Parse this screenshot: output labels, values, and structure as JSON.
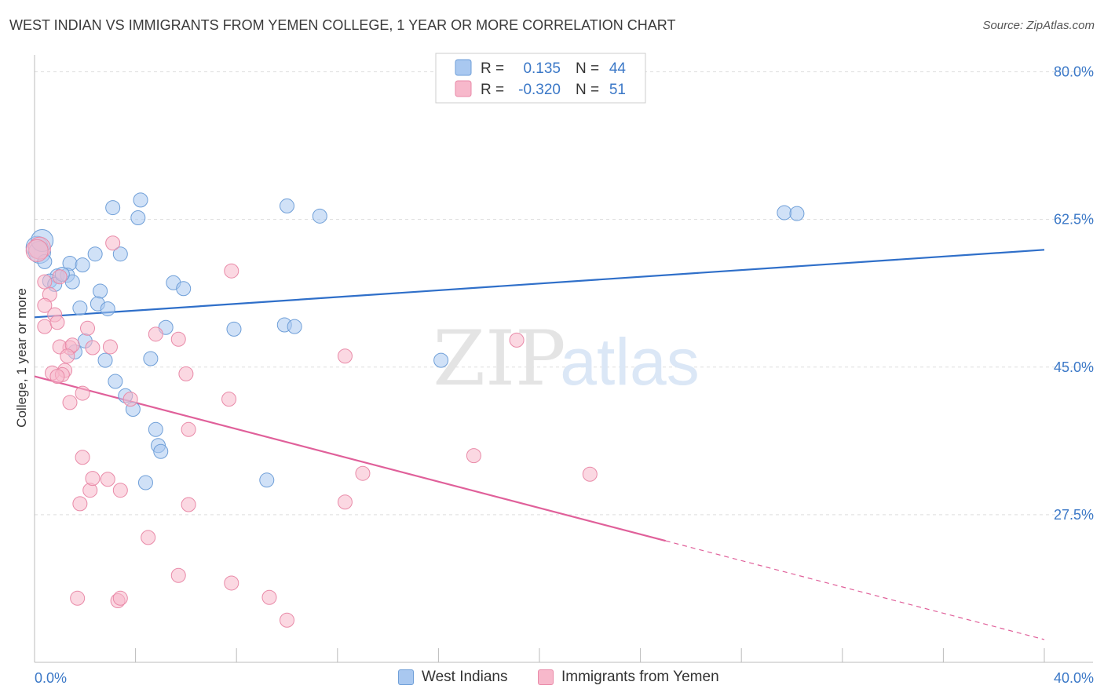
{
  "title": "WEST INDIAN VS IMMIGRANTS FROM YEMEN COLLEGE, 1 YEAR OR MORE CORRELATION CHART",
  "source": "Source: ZipAtlas.com",
  "watermark": {
    "zip": "ZIP",
    "atlas": "atlas"
  },
  "colors": {
    "blue_fill": "#a9c8f0",
    "blue_stroke": "#6f9fd8",
    "blue_line": "#2f6fc9",
    "pink_fill": "#f7b8cb",
    "pink_stroke": "#e98aa8",
    "pink_line": "#e0609a",
    "grid": "#dddddd",
    "axis_text": "#3b78c7"
  },
  "legend": {
    "rows": [
      {
        "r_label": "R =",
        "r_value": "0.135",
        "n_label": "N =",
        "n_value": "44"
      },
      {
        "r_label": "R =",
        "r_value": "-0.320",
        "n_label": "N =",
        "n_value": "51"
      }
    ]
  },
  "chart_data": {
    "type": "scatter",
    "xlabel": "",
    "ylabel": "College, 1 year or more",
    "xlim": [
      0,
      40
    ],
    "ylim": [
      10,
      82
    ],
    "x_tick_labels": [
      "0.0%",
      "40.0%"
    ],
    "y_ticks": [
      27.5,
      45.0,
      62.5,
      80.0
    ],
    "y_tick_labels": [
      "27.5%",
      "45.0%",
      "62.5%",
      "80.0%"
    ],
    "grid": true,
    "legend_position": "top-center",
    "series": [
      {
        "name": "West Indians",
        "color": "blue",
        "trend": {
          "x": [
            0,
            40
          ],
          "y": [
            50.9,
            58.9
          ],
          "dashed_from": null
        },
        "points": [
          [
            0.1,
            59.2
          ],
          [
            0.2,
            58.6
          ],
          [
            0.4,
            57.5
          ],
          [
            1.4,
            57.3
          ],
          [
            1.9,
            57.1
          ],
          [
            2.4,
            58.4
          ],
          [
            0.9,
            55.8
          ],
          [
            1.3,
            55.9
          ],
          [
            0.6,
            55.2
          ],
          [
            1.5,
            55.1
          ],
          [
            0.8,
            54.8
          ],
          [
            2.6,
            54.0
          ],
          [
            2.5,
            52.5
          ],
          [
            1.8,
            52.0
          ],
          [
            2.9,
            51.9
          ],
          [
            3.1,
            63.9
          ],
          [
            3.4,
            58.4
          ],
          [
            4.1,
            62.7
          ],
          [
            4.2,
            64.8
          ],
          [
            5.5,
            55.0
          ],
          [
            5.9,
            54.3
          ],
          [
            5.2,
            49.7
          ],
          [
            7.9,
            49.5
          ],
          [
            9.9,
            50.0
          ],
          [
            10.3,
            49.8
          ],
          [
            10.0,
            64.1
          ],
          [
            11.3,
            62.9
          ],
          [
            1.6,
            46.8
          ],
          [
            2.0,
            48.1
          ],
          [
            2.8,
            45.8
          ],
          [
            4.6,
            46.0
          ],
          [
            3.2,
            43.3
          ],
          [
            3.6,
            41.6
          ],
          [
            3.9,
            40.0
          ],
          [
            4.8,
            37.6
          ],
          [
            4.9,
            35.7
          ],
          [
            5.0,
            35.0
          ],
          [
            4.4,
            31.3
          ],
          [
            9.2,
            31.6
          ],
          [
            16.1,
            45.8
          ],
          [
            29.7,
            63.3
          ],
          [
            30.2,
            63.2
          ],
          [
            0.3,
            60.0
          ],
          [
            1.1,
            56.0
          ]
        ]
      },
      {
        "name": "Immigrants from Yemen",
        "color": "pink",
        "trend": {
          "x": [
            0,
            40
          ],
          "y": [
            43.9,
            12.7
          ],
          "dashed_from": 25.0
        },
        "points": [
          [
            0.2,
            59.1
          ],
          [
            0.4,
            55.1
          ],
          [
            0.6,
            53.6
          ],
          [
            1.0,
            55.7
          ],
          [
            0.4,
            52.3
          ],
          [
            0.8,
            51.2
          ],
          [
            0.4,
            49.8
          ],
          [
            0.9,
            50.3
          ],
          [
            2.1,
            49.6
          ],
          [
            1.4,
            47.3
          ],
          [
            1.0,
            47.4
          ],
          [
            1.5,
            47.6
          ],
          [
            2.3,
            47.3
          ],
          [
            3.0,
            47.4
          ],
          [
            1.3,
            46.3
          ],
          [
            0.7,
            44.3
          ],
          [
            1.2,
            44.6
          ],
          [
            1.1,
            44.1
          ],
          [
            0.9,
            43.9
          ],
          [
            1.4,
            40.8
          ],
          [
            1.9,
            41.9
          ],
          [
            3.8,
            41.2
          ],
          [
            3.1,
            59.7
          ],
          [
            5.7,
            48.3
          ],
          [
            4.8,
            48.9
          ],
          [
            6.0,
            44.2
          ],
          [
            7.7,
            41.2
          ],
          [
            6.1,
            37.6
          ],
          [
            7.8,
            56.4
          ],
          [
            12.3,
            46.3
          ],
          [
            19.1,
            48.2
          ],
          [
            1.9,
            34.3
          ],
          [
            2.2,
            30.4
          ],
          [
            2.3,
            31.8
          ],
          [
            2.9,
            31.7
          ],
          [
            3.4,
            30.4
          ],
          [
            1.8,
            28.8
          ],
          [
            6.1,
            28.7
          ],
          [
            12.3,
            29.0
          ],
          [
            13.0,
            32.4
          ],
          [
            17.4,
            34.5
          ],
          [
            22.0,
            32.3
          ],
          [
            4.5,
            24.8
          ],
          [
            5.7,
            20.3
          ],
          [
            7.8,
            19.4
          ],
          [
            1.7,
            17.6
          ],
          [
            3.3,
            17.3
          ],
          [
            3.4,
            17.6
          ],
          [
            9.3,
            17.7
          ],
          [
            10.0,
            15.0
          ],
          [
            0.1,
            58.8
          ]
        ]
      }
    ]
  }
}
